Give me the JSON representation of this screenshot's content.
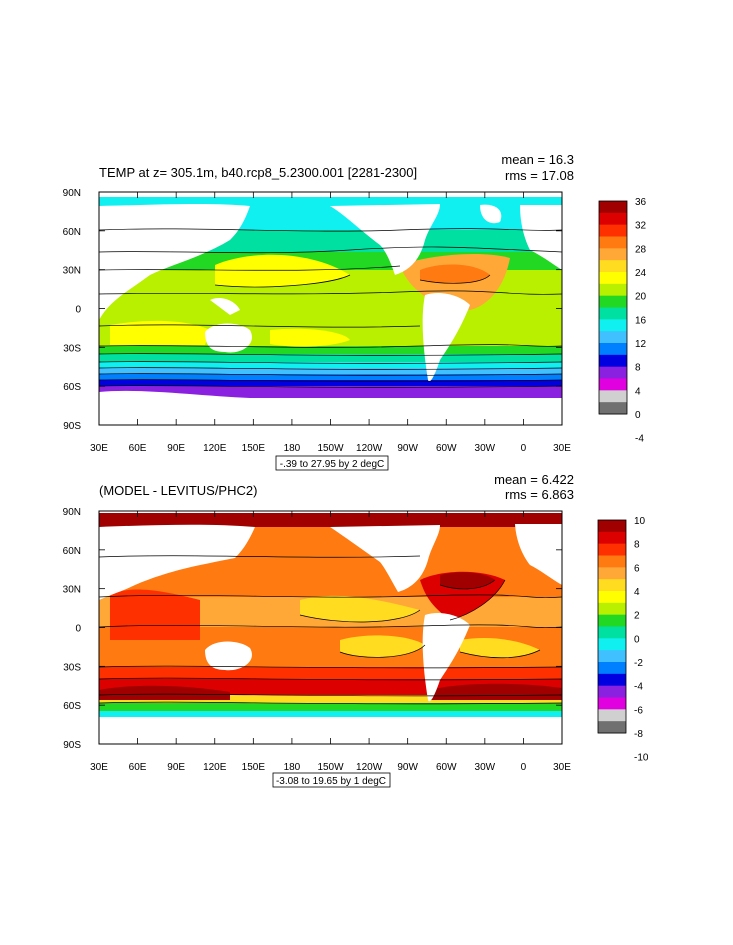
{
  "panels": [
    {
      "title": "TEMP at z= 305.1m, b40.rcp8_5.2300.001 [2281-2300]",
      "stats": {
        "mean": "mean = 16.3",
        "rms": "rms = 17.08"
      },
      "lat_labels": [
        "90N",
        "60N",
        "30N",
        "0",
        "30S",
        "60S",
        "90S"
      ],
      "lon_labels": [
        "30E",
        "60E",
        "90E",
        "120E",
        "150E",
        "180",
        "150W",
        "120W",
        "90W",
        "60W",
        "30W",
        "0",
        "30E"
      ],
      "contour_info": "-.39 to 27.95 by 2 degC",
      "colorbar": {
        "labels": [
          "36",
          "32",
          "28",
          "24",
          "20",
          "16",
          "12",
          "8",
          "4",
          "0",
          "-4"
        ],
        "colors": [
          "#a00000",
          "#dd0000",
          "#ff3000",
          "#ff7a10",
          "#ffa838",
          "#ffdc20",
          "#ffff00",
          "#b8f000",
          "#22d822",
          "#00e0a0",
          "#10f0f0",
          "#40c0ff",
          "#0080ff",
          "#0000e0",
          "#8a20e0",
          "#e000e0",
          "#d0d0d0",
          "#707070"
        ]
      }
    },
    {
      "title": "(MODEL - LEVITUS/PHC2)",
      "stats": {
        "mean": "mean = 6.422",
        "rms": "rms = 6.863"
      },
      "lat_labels": [
        "90N",
        "60N",
        "30N",
        "0",
        "30S",
        "60S",
        "90S"
      ],
      "lon_labels": [
        "30E",
        "60E",
        "90E",
        "120E",
        "150E",
        "180",
        "150W",
        "120W",
        "90W",
        "60W",
        "30W",
        "0",
        "30E"
      ],
      "contour_info": "-3.08 to 19.65 by 1 degC",
      "colorbar": {
        "labels": [
          "10",
          "8",
          "6",
          "4",
          "2",
          "0",
          "-2",
          "-4",
          "-6",
          "-8",
          "-10"
        ],
        "colors": [
          "#a00000",
          "#dd0000",
          "#ff3000",
          "#ff7a10",
          "#ffa838",
          "#ffdc20",
          "#ffff00",
          "#b8f000",
          "#22d822",
          "#00e0a0",
          "#10f0f0",
          "#40c0ff",
          "#0080ff",
          "#0000e0",
          "#8a20e0",
          "#e000e0",
          "#d0d0d0",
          "#707070"
        ]
      }
    }
  ]
}
